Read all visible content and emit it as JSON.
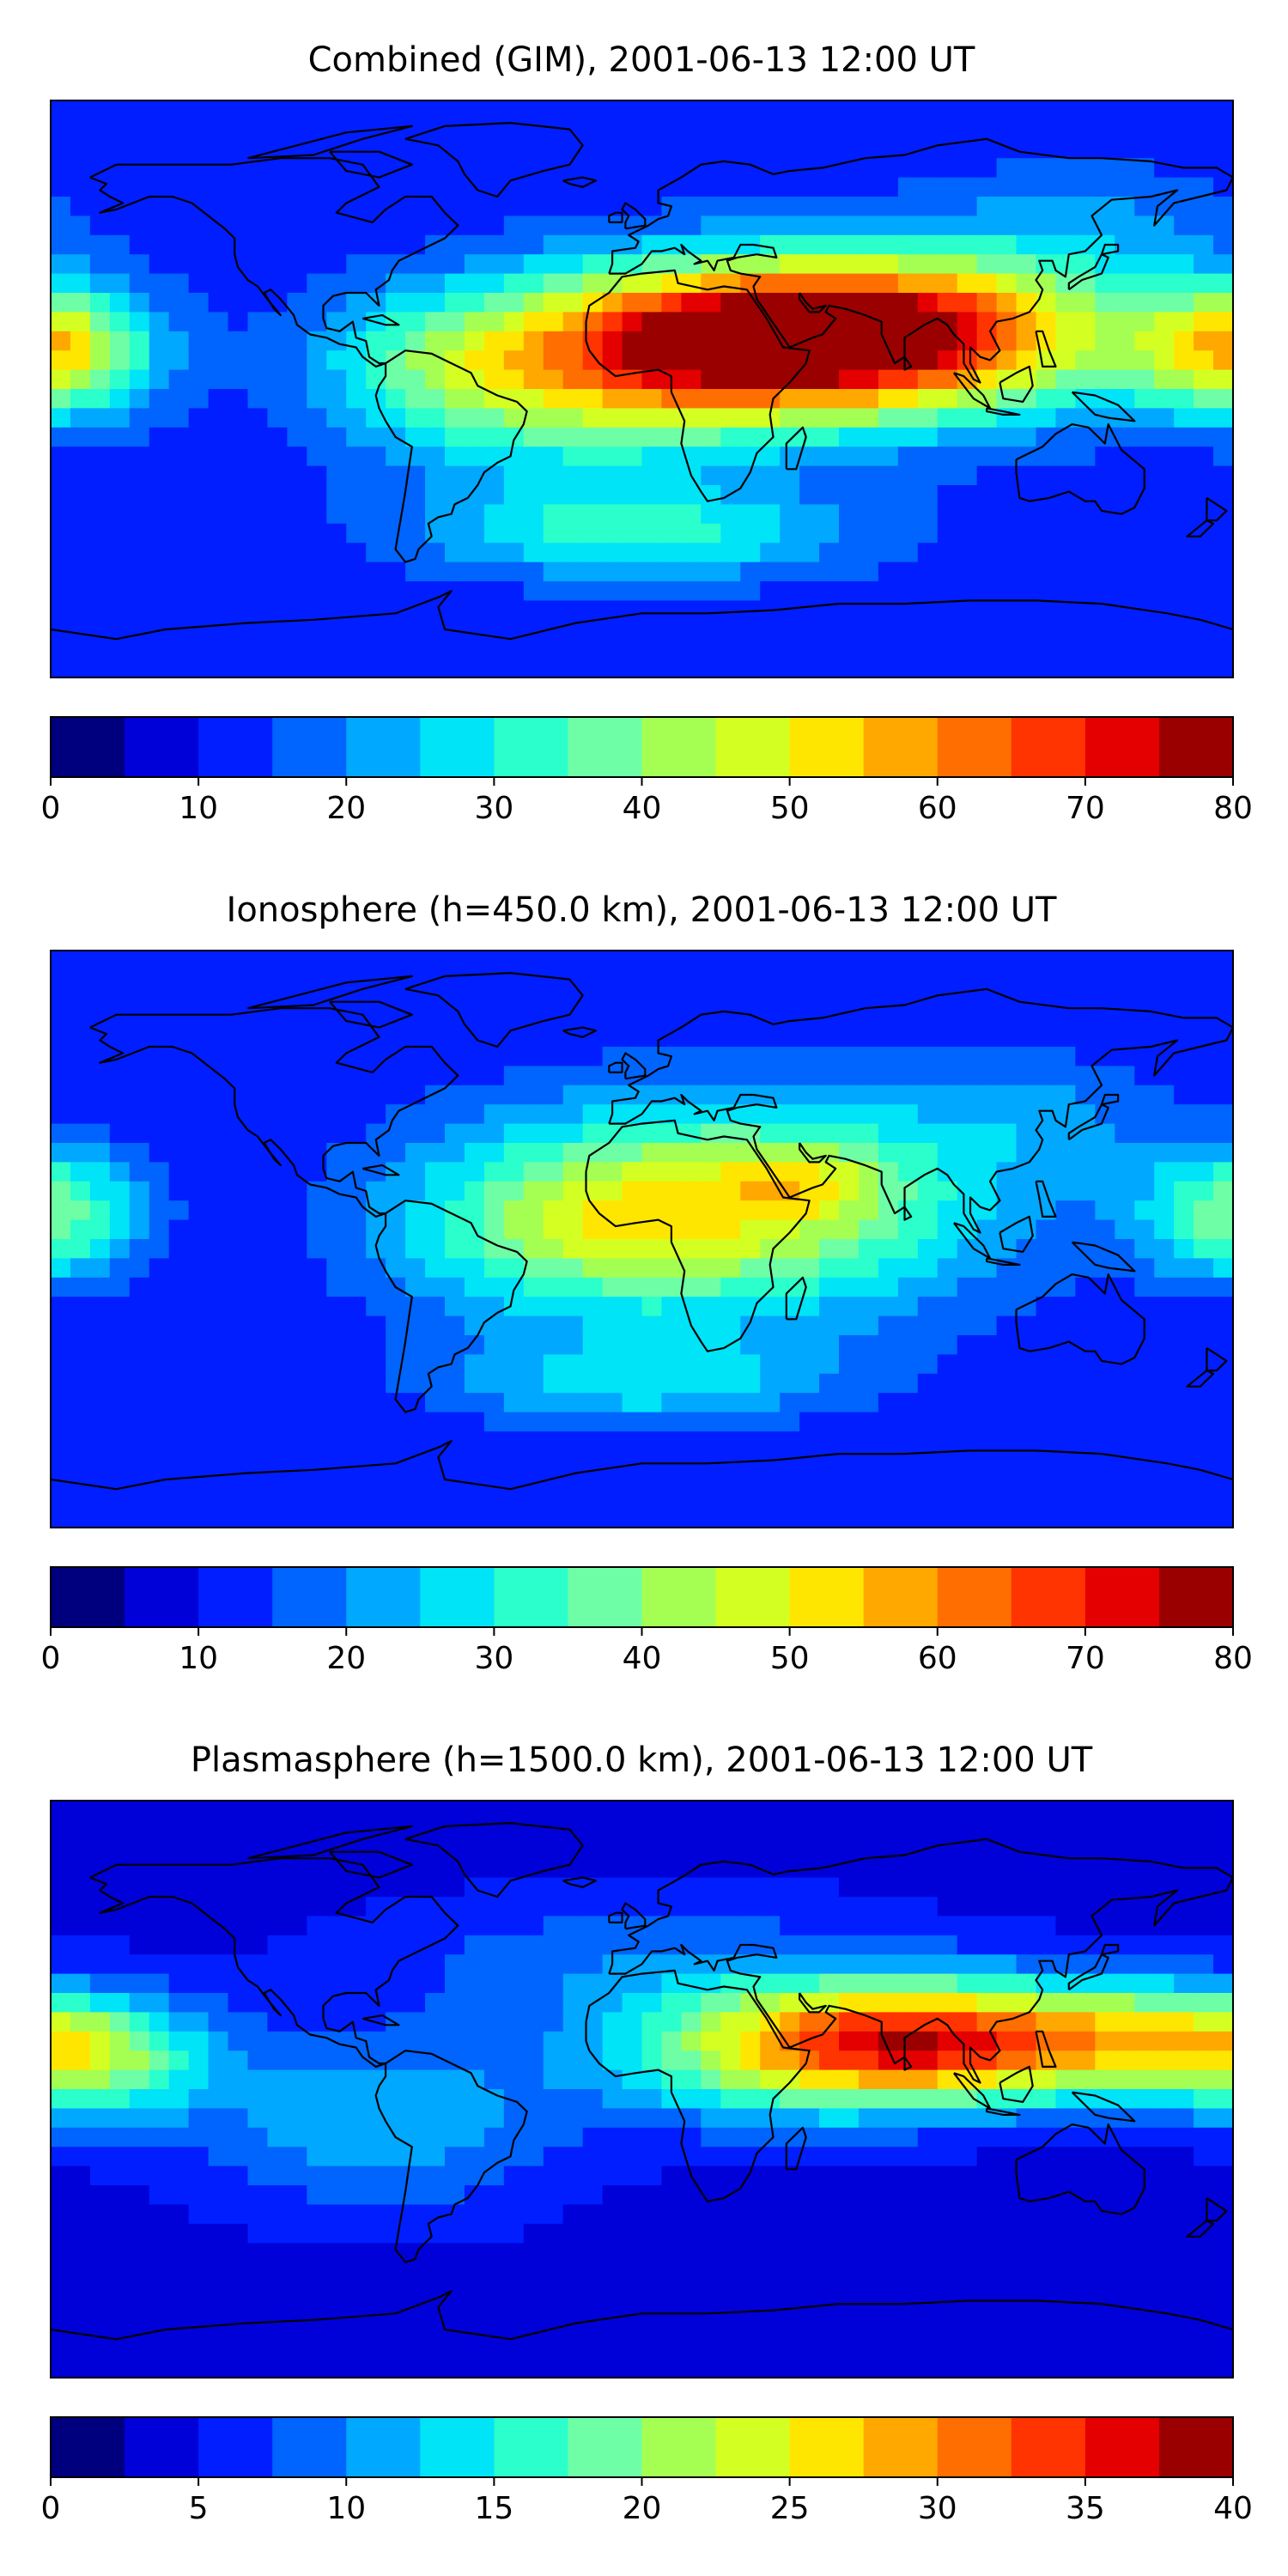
{
  "panels": [
    {
      "title": "Combined (GIM), 2001-06-13 12:00 UT",
      "colorbar": {
        "min": 0,
        "max": 80,
        "step": 5,
        "ticks": [
          "0",
          "10",
          "20",
          "30",
          "40",
          "50",
          "60",
          "70",
          "80"
        ]
      },
      "field": {
        "background": 12,
        "blobs": [
          {
            "lon": 45,
            "lat": 18,
            "a": 62,
            "slon": 55,
            "slat": 16
          },
          {
            "lon": 15,
            "lat": 5,
            "a": 18,
            "slon": 45,
            "slat": 18
          },
          {
            "lon": 95,
            "lat": 15,
            "a": 22,
            "slon": 40,
            "slat": 18
          },
          {
            "lon": -30,
            "lat": -5,
            "a": 15,
            "slon": 40,
            "slat": 20
          },
          {
            "lon": -65,
            "lat": 8,
            "a": 12,
            "slon": 25,
            "slat": 15
          },
          {
            "lon": 0,
            "lat": -45,
            "a": 20,
            "slon": 45,
            "slat": 10
          },
          {
            "lon": -178,
            "lat": 12,
            "a": 22,
            "slon": 22,
            "slat": 14
          },
          {
            "lon": 178,
            "lat": 12,
            "a": 18,
            "slon": 20,
            "slat": 14
          },
          {
            "lon": 135,
            "lat": 50,
            "a": 8,
            "slon": 35,
            "slat": 15
          }
        ]
      }
    },
    {
      "title": "Ionosphere  (h=450.0 km), 2001-06-13 12:00 UT",
      "colorbar": {
        "min": 0,
        "max": 80,
        "step": 5,
        "ticks": [
          "0",
          "10",
          "20",
          "30",
          "40",
          "50",
          "60",
          "70",
          "80"
        ]
      },
      "field": {
        "background": 10,
        "blobs": [
          {
            "lon": 25,
            "lat": 10,
            "a": 35,
            "slon": 60,
            "slat": 25
          },
          {
            "lon": 50,
            "lat": 18,
            "a": 12,
            "slon": 18,
            "slat": 8
          },
          {
            "lon": 0,
            "lat": 5,
            "a": 8,
            "slon": 30,
            "slat": 15
          },
          {
            "lon": -40,
            "lat": 0,
            "a": 8,
            "slon": 35,
            "slat": 20
          },
          {
            "lon": 0,
            "lat": -45,
            "a": 16,
            "slon": 45,
            "slat": 10
          },
          {
            "lon": -178,
            "lat": 8,
            "a": 16,
            "slon": 20,
            "slat": 15
          },
          {
            "lon": 178,
            "lat": 8,
            "a": 12,
            "slon": 20,
            "slat": 15
          },
          {
            "lon": 120,
            "lat": 40,
            "a": 8,
            "slon": 30,
            "slat": 15
          }
        ]
      }
    },
    {
      "title": "Plasmasphere (h=1500.0 km), 2001-06-13 12:00 UT",
      "colorbar": {
        "min": 0,
        "max": 40,
        "step": 2.5,
        "ticks": [
          "0",
          "5",
          "10",
          "15",
          "20",
          "25",
          "30",
          "35",
          "40"
        ]
      },
      "field": {
        "background": 4,
        "blobs": [
          {
            "lon": 95,
            "lat": 15,
            "a": 28,
            "slon": 45,
            "slat": 13
          },
          {
            "lon": 40,
            "lat": 10,
            "a": 12,
            "slon": 40,
            "slat": 15
          },
          {
            "lon": -165,
            "lat": 10,
            "a": 14,
            "slon": 25,
            "slat": 14
          },
          {
            "lon": -80,
            "lat": -10,
            "a": 8,
            "slon": 40,
            "slat": 20
          },
          {
            "lon": 0,
            "lat": 40,
            "a": 5,
            "slon": 60,
            "slat": 15
          },
          {
            "lon": 160,
            "lat": 15,
            "a": 10,
            "slon": 25,
            "slat": 12
          }
        ]
      }
    }
  ],
  "colors": [
    "#00007f",
    "#0000d9",
    "#001eff",
    "#0064ff",
    "#00a8ff",
    "#00e4f8",
    "#2bffcb",
    "#6effa6",
    "#a4ff52",
    "#d4ff22",
    "#ffe600",
    "#ffa800",
    "#ff6e00",
    "#ff3400",
    "#e40000",
    "#9a0000"
  ]
}
